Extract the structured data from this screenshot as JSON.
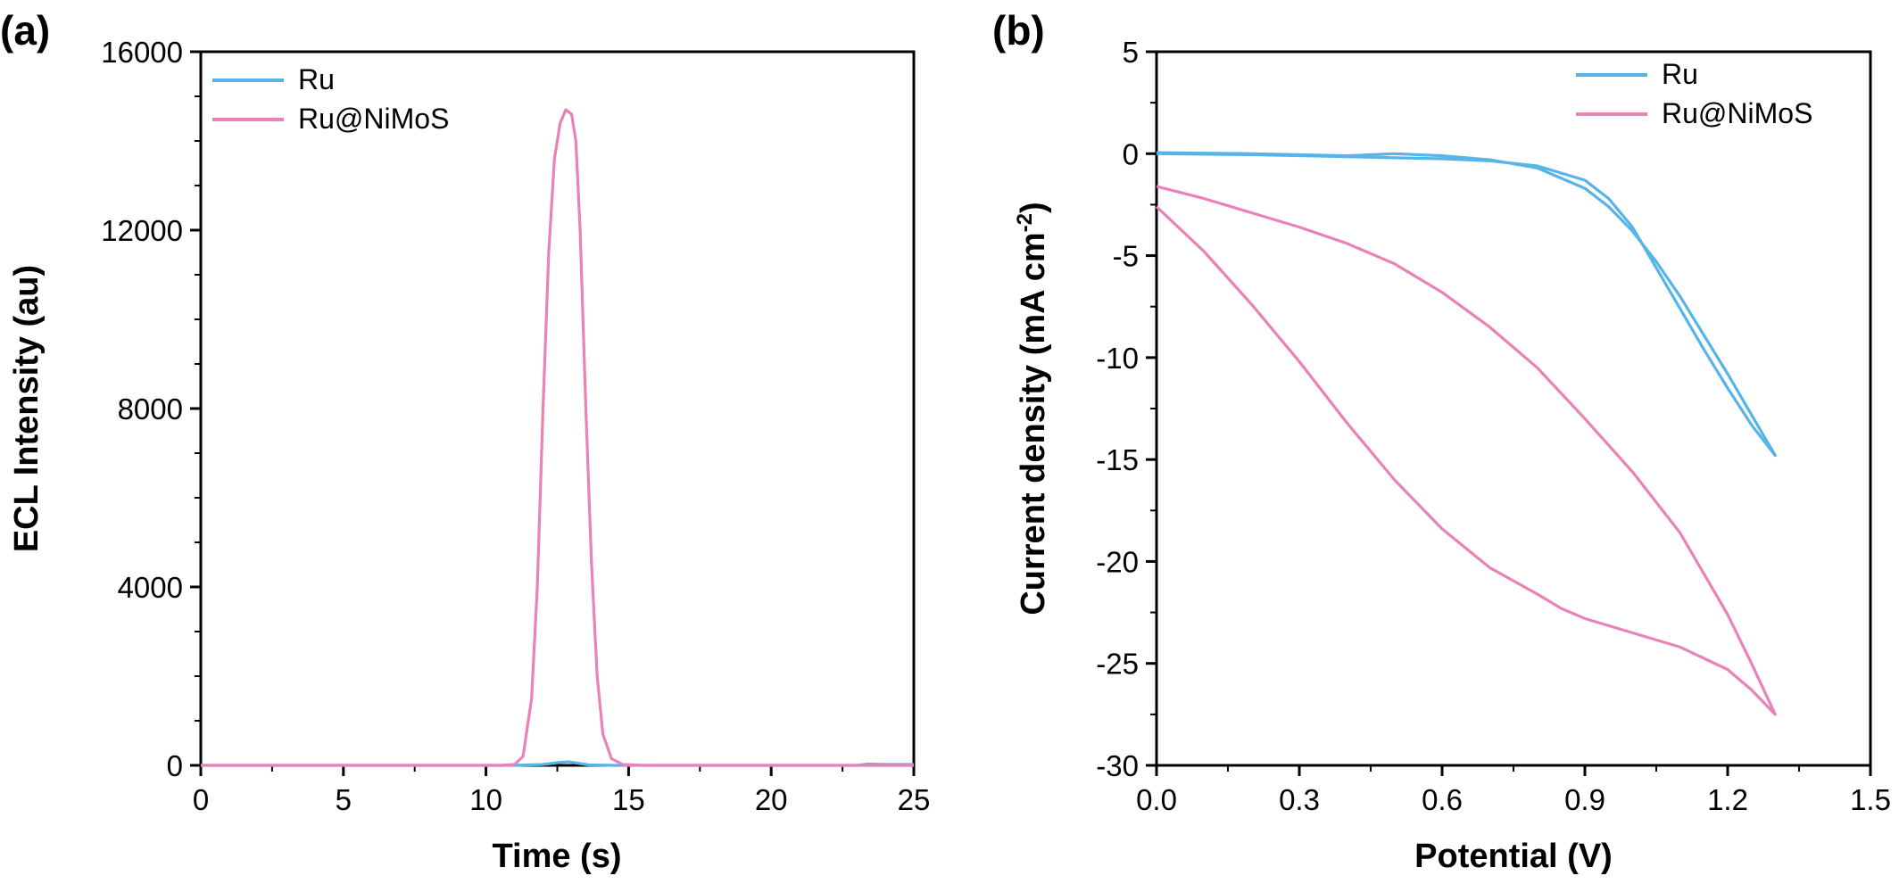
{
  "colors": {
    "ru": "#56b4e9",
    "ru_nimos": "#e882b8"
  },
  "chart_data": [
    {
      "panel": "(a)",
      "type": "line",
      "xlabel": "Time (s)",
      "ylabel": "ECL Intensity (au)",
      "xlim": [
        0,
        25
      ],
      "ylim": [
        0,
        16000
      ],
      "xticks": [
        "0",
        "5",
        "10",
        "15",
        "20",
        "25"
      ],
      "yticks": [
        "0",
        "4000",
        "8000",
        "12000",
        "16000"
      ],
      "legend_position": "top-left",
      "series": [
        {
          "name": "Ru",
          "color_key": "ru",
          "points": [
            [
              0,
              0
            ],
            [
              11,
              0
            ],
            [
              12,
              20
            ],
            [
              12.5,
              60
            ],
            [
              12.9,
              80
            ],
            [
              13.2,
              50
            ],
            [
              13.6,
              10
            ],
            [
              14.5,
              0
            ],
            [
              23,
              0
            ],
            [
              23.4,
              30
            ],
            [
              24,
              20
            ],
            [
              25,
              20
            ]
          ]
        },
        {
          "name": "Ru@NiMoS",
          "color_key": "ru_nimos",
          "points": [
            [
              0,
              0
            ],
            [
              10.5,
              0
            ],
            [
              11,
              20
            ],
            [
              11.3,
              200
            ],
            [
              11.6,
              1500
            ],
            [
              11.8,
              4000
            ],
            [
              12.0,
              8000
            ],
            [
              12.2,
              11500
            ],
            [
              12.4,
              13600
            ],
            [
              12.6,
              14400
            ],
            [
              12.8,
              14700
            ],
            [
              13.0,
              14600
            ],
            [
              13.15,
              14000
            ],
            [
              13.3,
              12000
            ],
            [
              13.5,
              8000
            ],
            [
              13.7,
              4500
            ],
            [
              13.9,
              2000
            ],
            [
              14.1,
              700
            ],
            [
              14.4,
              150
            ],
            [
              14.8,
              20
            ],
            [
              15.5,
              0
            ],
            [
              25,
              0
            ]
          ]
        }
      ]
    },
    {
      "panel": "(b)",
      "type": "line",
      "xlabel": "Potential (V)",
      "ylabel_main": "Current density (mA cm",
      "ylabel_sup": "-2",
      "ylabel_end": ")",
      "xlim": [
        0,
        1.5
      ],
      "ylim": [
        -30,
        5
      ],
      "xticks": [
        "0.0",
        "0.3",
        "0.6",
        "0.9",
        "1.2",
        "1.5"
      ],
      "yticks": [
        "5",
        "0",
        "-5",
        "-10",
        "-15",
        "-20",
        "-25",
        "-30"
      ],
      "legend_position": "top-right",
      "series": [
        {
          "name": "Ru",
          "color_key": "ru",
          "points": [
            [
              0,
              0.05
            ],
            [
              0.2,
              0
            ],
            [
              0.4,
              -0.1
            ],
            [
              0.5,
              0
            ],
            [
              0.6,
              -0.1
            ],
            [
              0.7,
              -0.3
            ],
            [
              0.8,
              -0.7
            ],
            [
              0.9,
              -1.7
            ],
            [
              0.95,
              -2.6
            ],
            [
              1.0,
              -3.8
            ],
            [
              1.05,
              -5.3
            ],
            [
              1.1,
              -7.0
            ],
            [
              1.15,
              -8.9
            ],
            [
              1.2,
              -10.8
            ],
            [
              1.25,
              -12.8
            ],
            [
              1.3,
              -14.8
            ],
            [
              1.25,
              -13.3
            ],
            [
              1.2,
              -11.5
            ],
            [
              1.15,
              -9.6
            ],
            [
              1.1,
              -7.6
            ],
            [
              1.05,
              -5.6
            ],
            [
              1.0,
              -3.6
            ],
            [
              0.95,
              -2.2
            ],
            [
              0.9,
              -1.3
            ],
            [
              0.8,
              -0.6
            ],
            [
              0.7,
              -0.35
            ],
            [
              0.6,
              -0.25
            ],
            [
              0.4,
              -0.15
            ],
            [
              0.2,
              -0.05
            ],
            [
              0,
              0
            ]
          ]
        },
        {
          "name": "Ru@NiMoS",
          "color_key": "ru_nimos",
          "points": [
            [
              0,
              -1.6
            ],
            [
              0.1,
              -2.2
            ],
            [
              0.2,
              -2.9
            ],
            [
              0.3,
              -3.6
            ],
            [
              0.4,
              -4.4
            ],
            [
              0.5,
              -5.4
            ],
            [
              0.6,
              -6.8
            ],
            [
              0.7,
              -8.5
            ],
            [
              0.8,
              -10.5
            ],
            [
              0.9,
              -13.0
            ],
            [
              1.0,
              -15.6
            ],
            [
              1.1,
              -18.6
            ],
            [
              1.2,
              -22.6
            ],
            [
              1.25,
              -25.0
            ],
            [
              1.3,
              -27.5
            ],
            [
              1.25,
              -26.3
            ],
            [
              1.2,
              -25.3
            ],
            [
              1.1,
              -24.2
            ],
            [
              1.0,
              -23.5
            ],
            [
              0.9,
              -22.8
            ],
            [
              0.85,
              -22.3
            ],
            [
              0.8,
              -21.6
            ],
            [
              0.7,
              -20.3
            ],
            [
              0.6,
              -18.4
            ],
            [
              0.5,
              -16.0
            ],
            [
              0.4,
              -13.2
            ],
            [
              0.3,
              -10.2
            ],
            [
              0.2,
              -7.4
            ],
            [
              0.1,
              -4.8
            ],
            [
              0,
              -2.6
            ]
          ]
        }
      ]
    }
  ]
}
